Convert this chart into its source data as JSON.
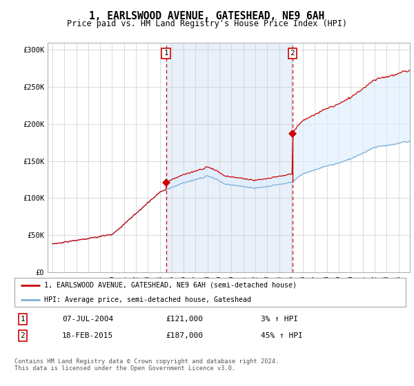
{
  "title": "1, EARLSWOOD AVENUE, GATESHEAD, NE9 6AH",
  "subtitle": "Price paid vs. HM Land Registry's House Price Index (HPI)",
  "ylim": [
    0,
    310000
  ],
  "yticks": [
    0,
    50000,
    100000,
    150000,
    200000,
    250000,
    300000
  ],
  "ytick_labels": [
    "£0",
    "£50K",
    "£100K",
    "£150K",
    "£200K",
    "£250K",
    "£300K"
  ],
  "line1_color": "#cc0000",
  "line2_color": "#7bafd4",
  "fill_color": "#ddeeff",
  "sale1_x": 2004.52,
  "sale1_price": 121000,
  "sale2_x": 2015.12,
  "sale2_price": 187000,
  "legend_line1": "1, EARLSWOOD AVENUE, GATESHEAD, NE9 6AH (semi-detached house)",
  "legend_line2": "HPI: Average price, semi-detached house, Gateshead",
  "ann1_date": "07-JUL-2004",
  "ann1_price": "£121,000",
  "ann1_hpi": "3% ↑ HPI",
  "ann2_date": "18-FEB-2015",
  "ann2_price": "£187,000",
  "ann2_hpi": "45% ↑ HPI",
  "footer": "Contains HM Land Registry data © Crown copyright and database right 2024.\nThis data is licensed under the Open Government Licence v3.0.",
  "bg_color": "#ffffff",
  "grid_color": "#cccccc",
  "span_color": "#e8f0fa"
}
